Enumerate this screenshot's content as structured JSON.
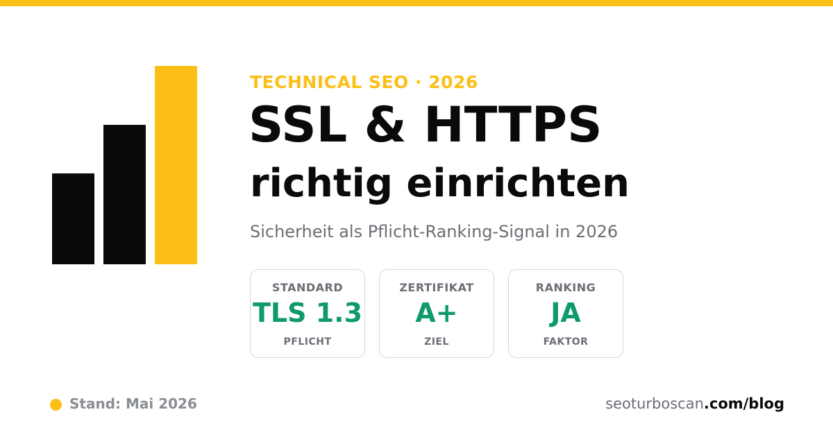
{
  "colors": {
    "accent": "#fbbf17",
    "dark": "#0a0a0a",
    "value_green": "#0e9a6c",
    "muted": "#6b6e75"
  },
  "header": {
    "eyebrow": "TECHNICAL SEO · 2026",
    "title": "SSL & HTTPS",
    "title_line2": "richtig einrichten",
    "subtitle": "Sicherheit als Pflicht-Ranking-Signal in 2026"
  },
  "cards": [
    {
      "label": "STANDARD",
      "value": "TLS 1.3",
      "note": "PFLICHT"
    },
    {
      "label": "ZERTIFIKAT",
      "value": "A+",
      "note": "ZIEL"
    },
    {
      "label": "RANKING",
      "value": "JA",
      "note": "FAKTOR"
    }
  ],
  "footer": {
    "stand": "Stand: Mai 2026",
    "url_domain": "seoturboscan",
    "url_path": ".com/blog"
  }
}
